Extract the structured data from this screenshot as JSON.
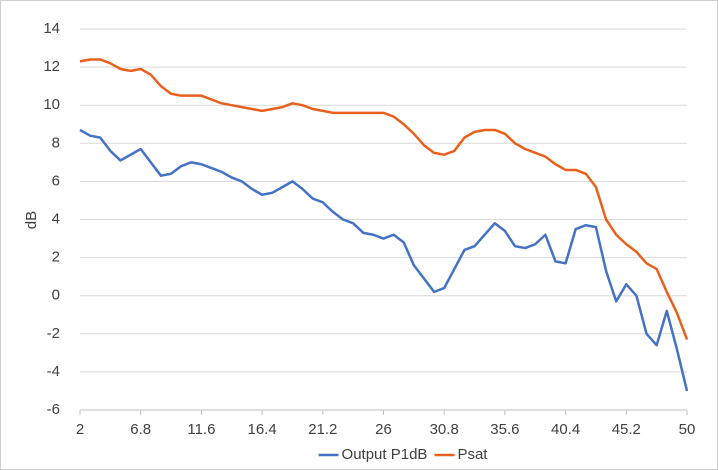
{
  "chart_data": {
    "type": "line",
    "y_label": "dB",
    "x": [
      2,
      2.8,
      3.6,
      4.4,
      5.2,
      6,
      6.8,
      7.6,
      8.4,
      9.2,
      10,
      10.8,
      11.6,
      12.4,
      13.2,
      14,
      14.8,
      15.6,
      16.4,
      17.2,
      18,
      18.8,
      19.6,
      20.4,
      21.2,
      22,
      22.8,
      23.6,
      24.4,
      25.2,
      26,
      26.8,
      27.6,
      28.4,
      29.2,
      30,
      30.8,
      31.6,
      32.4,
      33.2,
      34,
      34.8,
      35.6,
      36.4,
      37.2,
      38,
      38.8,
      39.6,
      40.4,
      41.2,
      42,
      42.8,
      43.6,
      44.4,
      45.2,
      46,
      46.8,
      47.6,
      48.4,
      49.2,
      50
    ],
    "series": [
      {
        "name": "Output P1dB",
        "color": "#4472c4",
        "values": [
          8.7,
          8.4,
          8.3,
          7.6,
          7.1,
          7.4,
          7.7,
          7.0,
          6.3,
          6.4,
          6.8,
          7.0,
          6.9,
          6.7,
          6.5,
          6.2,
          6.0,
          5.6,
          5.3,
          5.4,
          5.7,
          6.0,
          5.6,
          5.1,
          4.9,
          4.4,
          4.0,
          3.8,
          3.3,
          3.2,
          3.0,
          3.2,
          2.8,
          1.6,
          0.9,
          0.2,
          0.4,
          1.4,
          2.4,
          2.6,
          3.2,
          3.8,
          3.4,
          2.6,
          2.5,
          2.7,
          3.2,
          1.8,
          1.7,
          3.5,
          3.7,
          3.6,
          1.3,
          -0.3,
          0.6,
          0.0,
          -2.0,
          -2.6,
          -0.8,
          -2.8,
          -5.0
        ]
      },
      {
        "name": "Psat",
        "color": "#e8601c",
        "values": [
          12.3,
          12.4,
          12.4,
          12.2,
          11.9,
          11.8,
          11.9,
          11.6,
          11.0,
          10.6,
          10.5,
          10.5,
          10.5,
          10.3,
          10.1,
          10.0,
          9.9,
          9.8,
          9.7,
          9.8,
          9.9,
          10.1,
          10.0,
          9.8,
          9.7,
          9.6,
          9.6,
          9.6,
          9.6,
          9.6,
          9.6,
          9.4,
          9.0,
          8.5,
          7.9,
          7.5,
          7.4,
          7.6,
          8.3,
          8.6,
          8.7,
          8.7,
          8.5,
          8.0,
          7.7,
          7.5,
          7.3,
          6.9,
          6.6,
          6.6,
          6.4,
          5.7,
          4.0,
          3.2,
          2.7,
          2.3,
          1.7,
          1.4,
          0.2,
          -0.9,
          -2.3
        ]
      }
    ],
    "xlim": [
      2,
      50
    ],
    "xticks": [
      2,
      6.8,
      11.6,
      16.4,
      21.2,
      26,
      30.8,
      35.6,
      40.4,
      45.2,
      50
    ],
    "ylim": [
      -6,
      14
    ],
    "yticks": [
      -6,
      -4,
      -2,
      0,
      2,
      4,
      6,
      8,
      10,
      12,
      14
    ],
    "grid": true,
    "legend": "bottom"
  }
}
